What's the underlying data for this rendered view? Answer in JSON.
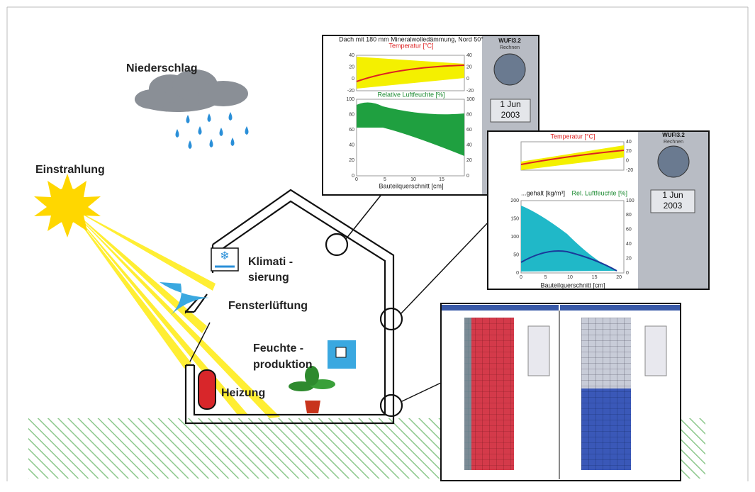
{
  "labels": {
    "niederschlag": "Niederschlag",
    "einstrahlung": "Einstrahlung",
    "klima_1": "Klimati -",
    "klima_2": "sierung",
    "fenster": "Fensterlüftung",
    "feuchte_1": "Feuchte -",
    "feuchte_2": "produktion",
    "heizung": "Heizung"
  },
  "screen_1": {
    "title": "Dach mit 180 mm Mineralwolledämmung, Nord 50°",
    "temp_label": "Temperatur [°C]",
    "temp_ticks": [
      40,
      20,
      0,
      -20
    ],
    "rh_label": "Relative Luftfeuchte [%]",
    "rh_ticks": [
      100,
      80,
      60,
      40,
      20,
      0
    ],
    "x_ticks": [
      0,
      5,
      10,
      15
    ],
    "x_label": "Bauteilquerschnitt [cm]",
    "app": "WUFI3.2",
    "button": "Rechnen",
    "day": "1 Jun",
    "year": "2003"
  },
  "screen_2": {
    "temp_label": "Temperatur [°C]",
    "temp_ticks": [
      40,
      20,
      0,
      -20
    ],
    "water_label": "...gehalt [kg/m³]",
    "rh_label": "Rel. Luftfeuchte [%]",
    "water_ticks": [
      200,
      150,
      100,
      50,
      0
    ],
    "rh_ticks": [
      100,
      80,
      60,
      40,
      20,
      0
    ],
    "x_ticks": [
      0,
      5,
      10,
      15,
      20
    ],
    "x_label": "Bauteilquerschnitt [cm]",
    "app": "WUFI3.2",
    "button": "Rechnen",
    "day": "1 Jun",
    "year": "2003"
  }
}
